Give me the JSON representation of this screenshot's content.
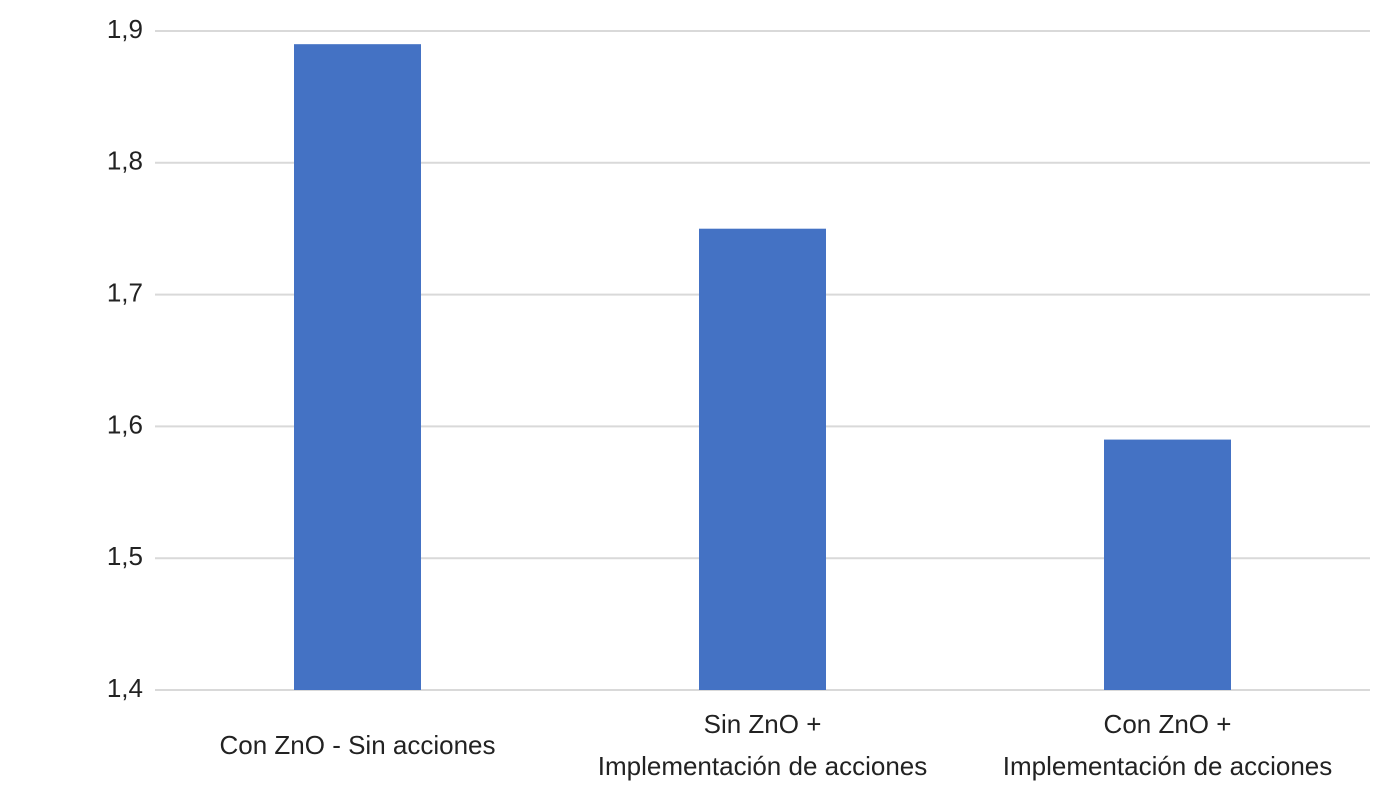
{
  "chart_data": {
    "type": "bar",
    "categories": [
      "Con ZnO - Sin acciones",
      "Sin ZnO +\nImplementación de acciones",
      "Con ZnO +\nImplementación de acciones"
    ],
    "values": [
      1.89,
      1.75,
      1.59
    ],
    "color": "#4472c4",
    "ylim": [
      1.4,
      1.9
    ],
    "yticks": [
      {
        "value": 1.4,
        "label": "1,4"
      },
      {
        "value": 1.5,
        "label": "1,5"
      },
      {
        "value": 1.6,
        "label": "1,6"
      },
      {
        "value": 1.7,
        "label": "1,7"
      },
      {
        "value": 1.8,
        "label": "1,8"
      },
      {
        "value": 1.9,
        "label": "1,9"
      }
    ],
    "grid": true
  }
}
